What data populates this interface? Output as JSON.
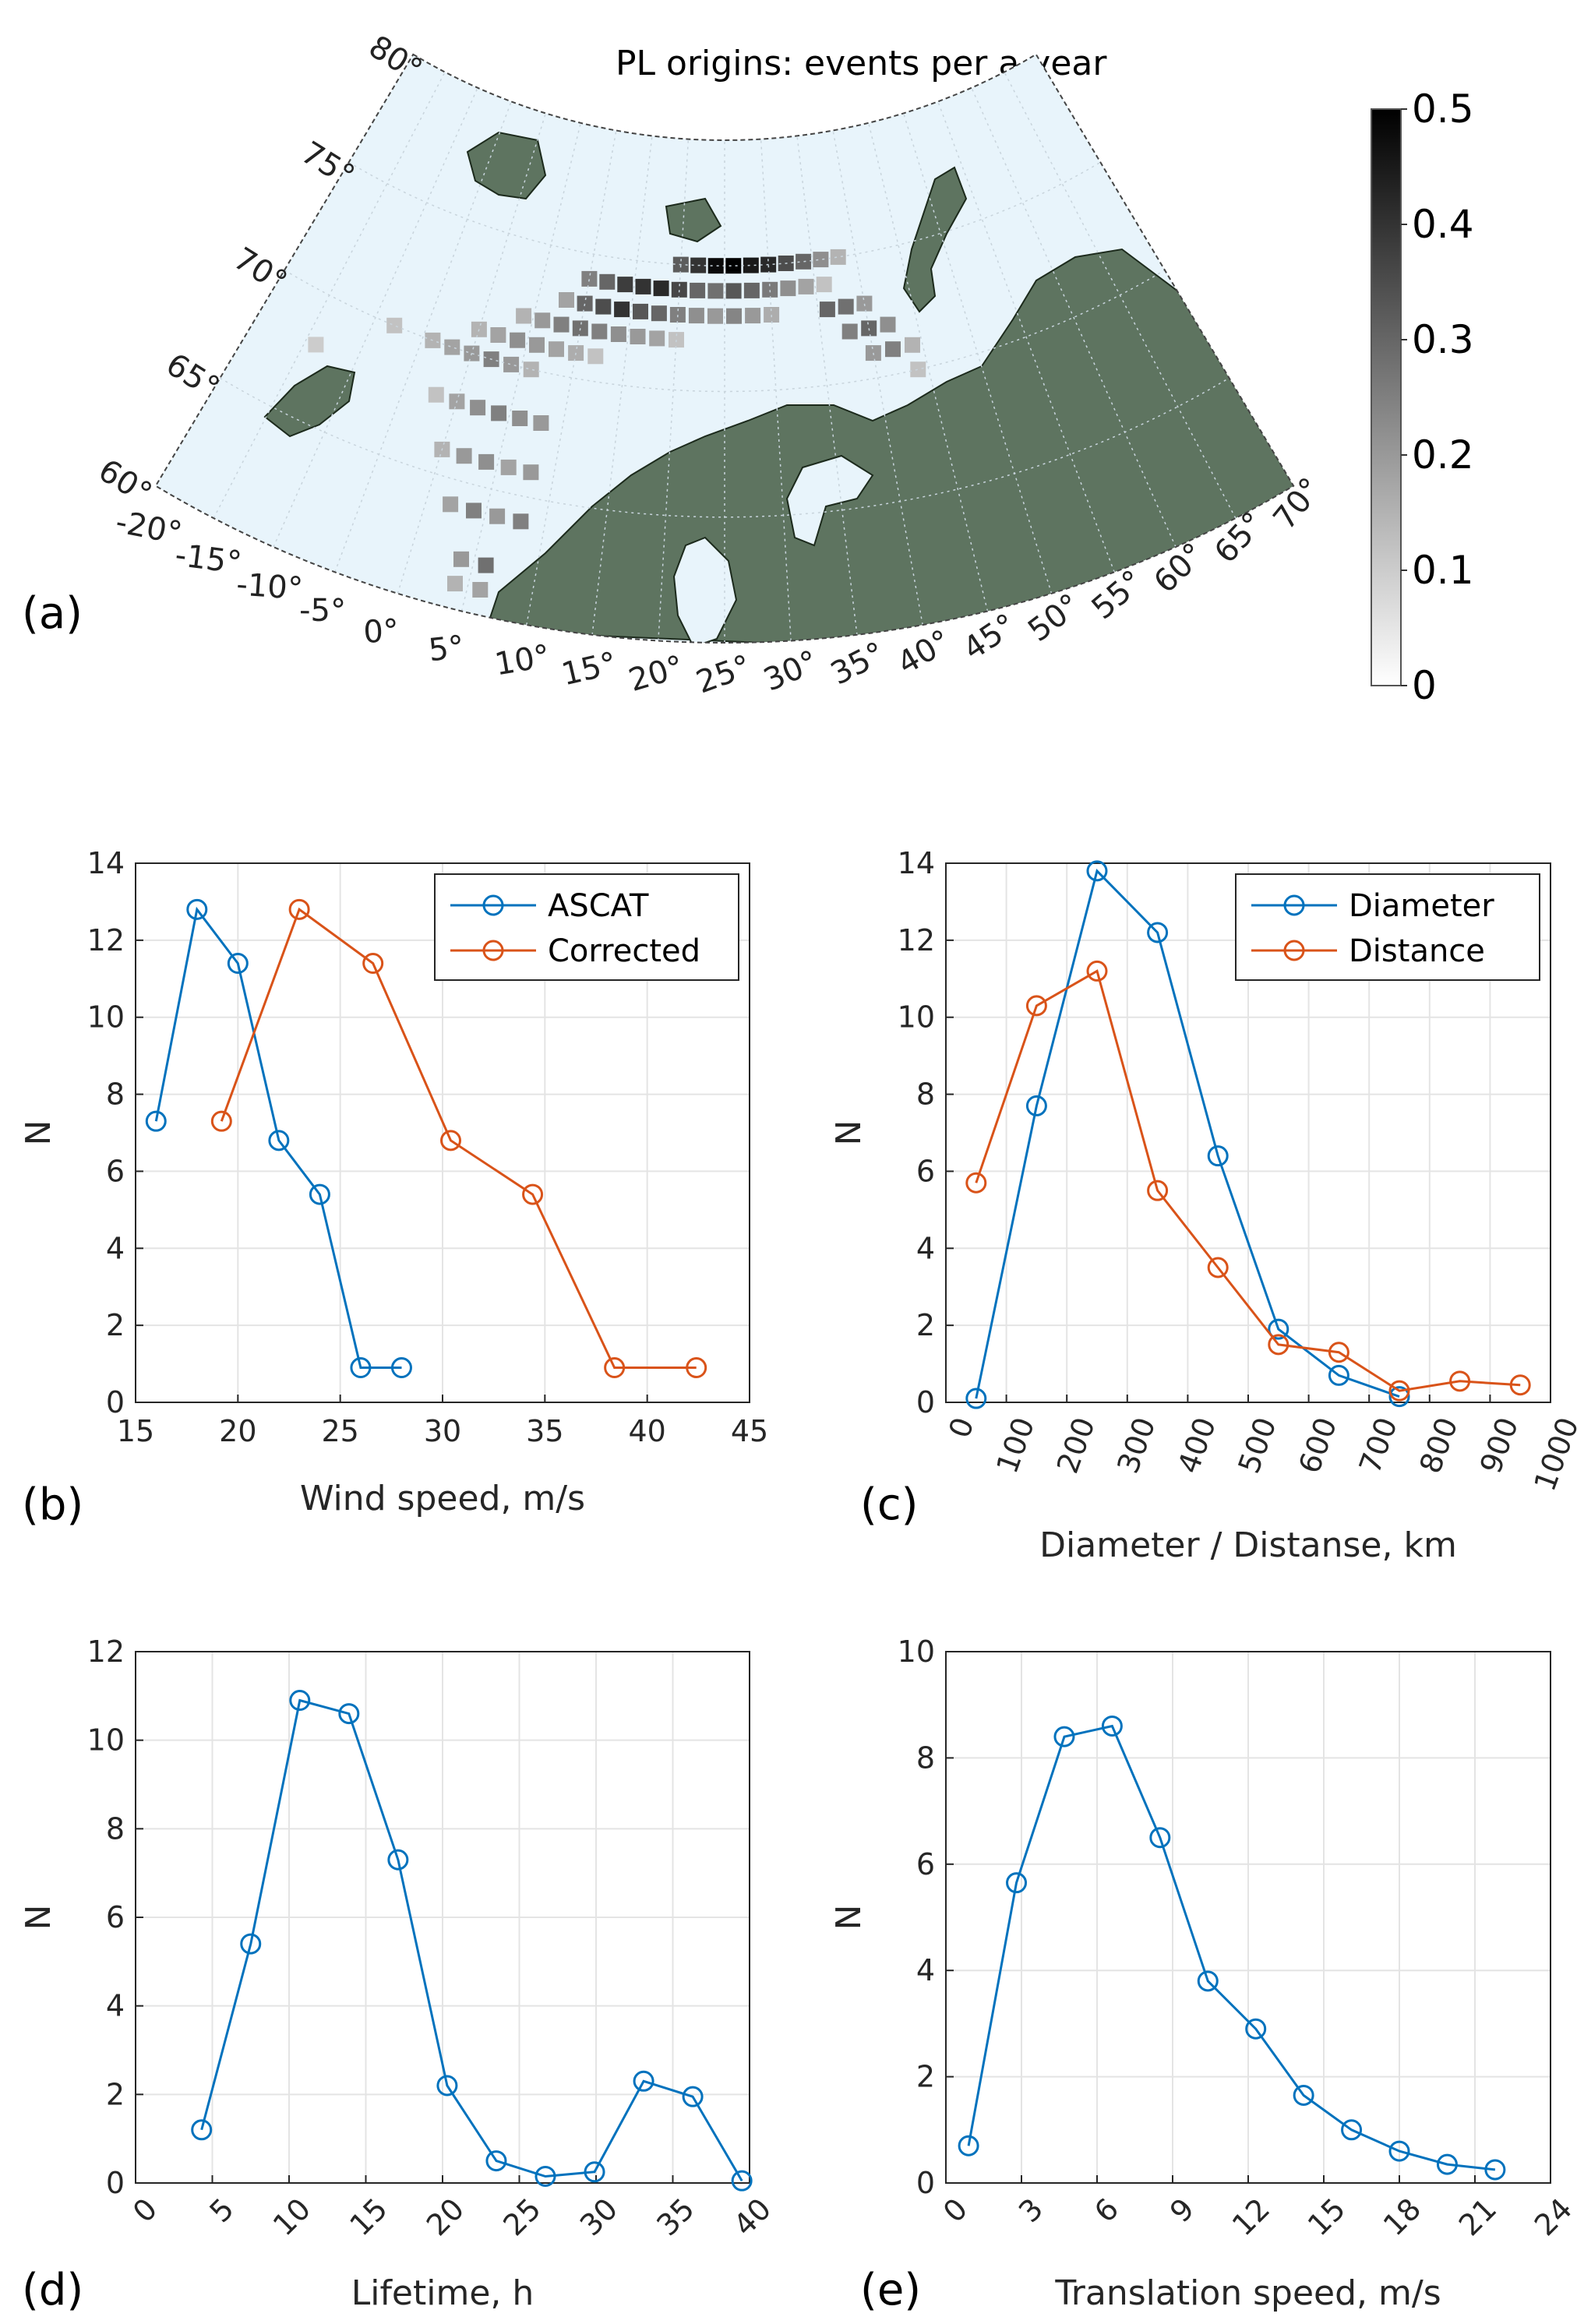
{
  "colors": {
    "blue": "#0072BD",
    "orange": "#D95319",
    "land": "#5E7460",
    "ocean": "#E8F4FB"
  },
  "map": {
    "panel_label": "(a)",
    "title": "PL origins: events per a year",
    "lat_labels": [
      "80°",
      "75°",
      "70°",
      "65°",
      "60°"
    ],
    "lon_labels": [
      "-20°",
      "-15°",
      "-10°",
      "-5°",
      "0°",
      "5°",
      "10°",
      "15°",
      "20°",
      "25°",
      "30°",
      "35°",
      "40°",
      "45°",
      "50°",
      "55°",
      "60°",
      "65°",
      "70°"
    ],
    "colorbar": {
      "ticks": [
        "0",
        "0.1",
        "0.2",
        "0.3",
        "0.4",
        "0.5"
      ],
      "min": 0,
      "max": 0.5
    },
    "cells": [
      {
        "lon": 20,
        "lat": 75,
        "v": 0.32
      },
      {
        "lon": 22,
        "lat": 75,
        "v": 0.4
      },
      {
        "lon": 24,
        "lat": 75,
        "v": 0.48
      },
      {
        "lon": 26,
        "lat": 75,
        "v": 0.5
      },
      {
        "lon": 28,
        "lat": 75,
        "v": 0.45
      },
      {
        "lon": 30,
        "lat": 75,
        "v": 0.42
      },
      {
        "lon": 32,
        "lat": 75,
        "v": 0.35
      },
      {
        "lon": 34,
        "lat": 75,
        "v": 0.3
      },
      {
        "lon": 36,
        "lat": 75,
        "v": 0.22
      },
      {
        "lon": 38,
        "lat": 75,
        "v": 0.15
      },
      {
        "lon": 10,
        "lat": 74,
        "v": 0.25
      },
      {
        "lon": 12,
        "lat": 74,
        "v": 0.3
      },
      {
        "lon": 14,
        "lat": 74,
        "v": 0.38
      },
      {
        "lon": 16,
        "lat": 74,
        "v": 0.4
      },
      {
        "lon": 18,
        "lat": 74,
        "v": 0.42
      },
      {
        "lon": 20,
        "lat": 74,
        "v": 0.36
      },
      {
        "lon": 22,
        "lat": 74,
        "v": 0.3
      },
      {
        "lon": 24,
        "lat": 74,
        "v": 0.28
      },
      {
        "lon": 26,
        "lat": 74,
        "v": 0.33
      },
      {
        "lon": 28,
        "lat": 74,
        "v": 0.3
      },
      {
        "lon": 30,
        "lat": 74,
        "v": 0.26
      },
      {
        "lon": 32,
        "lat": 74,
        "v": 0.22
      },
      {
        "lon": 34,
        "lat": 74,
        "v": 0.18
      },
      {
        "lon": 36,
        "lat": 74,
        "v": 0.12
      },
      {
        "lon": 8,
        "lat": 73,
        "v": 0.18
      },
      {
        "lon": 10,
        "lat": 73,
        "v": 0.3
      },
      {
        "lon": 12,
        "lat": 73,
        "v": 0.35
      },
      {
        "lon": 14,
        "lat": 73,
        "v": 0.4
      },
      {
        "lon": 16,
        "lat": 73,
        "v": 0.33
      },
      {
        "lon": 18,
        "lat": 73,
        "v": 0.3
      },
      {
        "lon": 20,
        "lat": 73,
        "v": 0.25
      },
      {
        "lon": 22,
        "lat": 73,
        "v": 0.22
      },
      {
        "lon": 24,
        "lat": 73,
        "v": 0.2
      },
      {
        "lon": 26,
        "lat": 73,
        "v": 0.24
      },
      {
        "lon": 28,
        "lat": 73,
        "v": 0.2
      },
      {
        "lon": 30,
        "lat": 73,
        "v": 0.16
      },
      {
        "lon": 36,
        "lat": 73,
        "v": 0.3
      },
      {
        "lon": 38,
        "lat": 73,
        "v": 0.28
      },
      {
        "lon": 40,
        "lat": 73,
        "v": 0.2
      },
      {
        "lon": 4,
        "lat": 72,
        "v": 0.15
      },
      {
        "lon": 6,
        "lat": 72,
        "v": 0.2
      },
      {
        "lon": 8,
        "lat": 72,
        "v": 0.25
      },
      {
        "lon": 10,
        "lat": 72,
        "v": 0.28
      },
      {
        "lon": 12,
        "lat": 72,
        "v": 0.25
      },
      {
        "lon": 14,
        "lat": 72,
        "v": 0.22
      },
      {
        "lon": 16,
        "lat": 72,
        "v": 0.2
      },
      {
        "lon": 18,
        "lat": 72,
        "v": 0.18
      },
      {
        "lon": 20,
        "lat": 72,
        "v": 0.12
      },
      {
        "lon": 38,
        "lat": 72,
        "v": 0.25
      },
      {
        "lon": 40,
        "lat": 72,
        "v": 0.3
      },
      {
        "lon": 42,
        "lat": 72,
        "v": 0.22
      },
      {
        "lon": 0,
        "lat": 71,
        "v": 0.15
      },
      {
        "lon": 2,
        "lat": 71,
        "v": 0.18
      },
      {
        "lon": 4,
        "lat": 71,
        "v": 0.22
      },
      {
        "lon": 6,
        "lat": 71,
        "v": 0.2
      },
      {
        "lon": 8,
        "lat": 71,
        "v": 0.18
      },
      {
        "lon": 10,
        "lat": 71,
        "v": 0.16
      },
      {
        "lon": 12,
        "lat": 71,
        "v": 0.12
      },
      {
        "lon": 40,
        "lat": 71,
        "v": 0.2
      },
      {
        "lon": 42,
        "lat": 71,
        "v": 0.25
      },
      {
        "lon": 44,
        "lat": 71,
        "v": 0.15
      },
      {
        "lon": -8,
        "lat": 70,
        "v": 0.12
      },
      {
        "lon": -4,
        "lat": 70,
        "v": 0.15
      },
      {
        "lon": -2,
        "lat": 70,
        "v": 0.18
      },
      {
        "lon": 0,
        "lat": 70,
        "v": 0.2
      },
      {
        "lon": 2,
        "lat": 70,
        "v": 0.25
      },
      {
        "lon": 4,
        "lat": 70,
        "v": 0.2
      },
      {
        "lon": 6,
        "lat": 70,
        "v": 0.15
      },
      {
        "lon": 44,
        "lat": 70,
        "v": 0.12
      },
      {
        "lon": -14,
        "lat": 68,
        "v": 0.1
      },
      {
        "lon": -2,
        "lat": 68,
        "v": 0.12
      },
      {
        "lon": 0,
        "lat": 68,
        "v": 0.18
      },
      {
        "lon": 2,
        "lat": 68,
        "v": 0.22
      },
      {
        "lon": 4,
        "lat": 68,
        "v": 0.25
      },
      {
        "lon": 6,
        "lat": 68,
        "v": 0.22
      },
      {
        "lon": 8,
        "lat": 68,
        "v": 0.2
      },
      {
        "lon": 0,
        "lat": 66,
        "v": 0.15
      },
      {
        "lon": 2,
        "lat": 66,
        "v": 0.2
      },
      {
        "lon": 4,
        "lat": 66,
        "v": 0.22
      },
      {
        "lon": 6,
        "lat": 66,
        "v": 0.18
      },
      {
        "lon": 8,
        "lat": 66,
        "v": 0.2
      },
      {
        "lon": 2,
        "lat": 64,
        "v": 0.18
      },
      {
        "lon": 4,
        "lat": 64,
        "v": 0.25
      },
      {
        "lon": 6,
        "lat": 64,
        "v": 0.2
      },
      {
        "lon": 8,
        "lat": 64,
        "v": 0.25
      },
      {
        "lon": 4,
        "lat": 62,
        "v": 0.2
      },
      {
        "lon": 6,
        "lat": 62,
        "v": 0.28
      },
      {
        "lon": 4,
        "lat": 61,
        "v": 0.15
      },
      {
        "lon": 6,
        "lat": 61,
        "v": 0.18
      }
    ]
  },
  "chart_data": [
    {
      "type": "line",
      "panel_label": "(b)",
      "xlabel": "Wind speed, m/s",
      "ylabel": "N",
      "xlim": [
        15,
        45
      ],
      "ylim": [
        0,
        14
      ],
      "xticks": [
        15,
        20,
        25,
        30,
        35,
        40,
        45
      ],
      "yticks": [
        0,
        2,
        4,
        6,
        8,
        10,
        12,
        14
      ],
      "legend": "top-right",
      "series": [
        {
          "name": "ASCAT",
          "color": "#0072BD",
          "x": [
            16,
            18,
            20,
            22,
            24,
            26,
            28
          ],
          "y": [
            7.3,
            12.8,
            11.4,
            6.8,
            5.4,
            0.9,
            0.9
          ]
        },
        {
          "name": "Corrected",
          "color": "#D95319",
          "x": [
            19.2,
            23,
            26.6,
            30.4,
            34.4,
            38.4,
            42.4
          ],
          "y": [
            7.3,
            12.8,
            11.4,
            6.8,
            5.4,
            0.9,
            0.9
          ]
        }
      ]
    },
    {
      "type": "line",
      "panel_label": "(c)",
      "xlabel": "Diameter / Distanse, km",
      "ylabel": "N",
      "xlim": [
        0,
        1000
      ],
      "ylim": [
        0,
        14
      ],
      "xticks": [
        0,
        100,
        200,
        300,
        400,
        500,
        600,
        700,
        800,
        900,
        1000
      ],
      "yticks": [
        0,
        2,
        4,
        6,
        8,
        10,
        12,
        14
      ],
      "xtick_rotation": -70,
      "legend": "top-right",
      "series": [
        {
          "name": "Diameter",
          "color": "#0072BD",
          "x": [
            50,
            150,
            250,
            350,
            450,
            550,
            650,
            750
          ],
          "y": [
            0.1,
            7.7,
            13.8,
            12.2,
            6.4,
            1.9,
            0.7,
            0.15
          ]
        },
        {
          "name": "Distance",
          "color": "#D95319",
          "x": [
            50,
            150,
            250,
            350,
            450,
            550,
            650,
            750,
            850,
            950
          ],
          "y": [
            5.7,
            10.3,
            11.2,
            5.5,
            3.5,
            1.5,
            1.3,
            0.3,
            0.55,
            0.45
          ]
        }
      ]
    },
    {
      "type": "line",
      "panel_label": "(d)",
      "xlabel": "Lifetime, h",
      "ylabel": "N",
      "xlim": [
        0,
        40
      ],
      "ylim": [
        0,
        12
      ],
      "xticks": [
        0,
        5,
        10,
        15,
        20,
        25,
        30,
        35,
        40
      ],
      "yticks": [
        0,
        2,
        4,
        6,
        8,
        10,
        12
      ],
      "xtick_rotation": -45,
      "series": [
        {
          "name": "Lifetime",
          "color": "#0072BD",
          "x": [
            4.3,
            7.5,
            10.7,
            13.9,
            17.1,
            20.3,
            23.5,
            26.7,
            29.9,
            33.1,
            36.3,
            39.5
          ],
          "y": [
            1.2,
            5.4,
            10.9,
            10.6,
            7.3,
            2.2,
            0.5,
            0.15,
            0.25,
            2.3,
            1.95,
            0.05
          ]
        }
      ]
    },
    {
      "type": "line",
      "panel_label": "(e)",
      "xlabel": "Translation speed, m/s",
      "ylabel": "N",
      "xlim": [
        0,
        24
      ],
      "ylim": [
        0,
        10
      ],
      "xticks": [
        0,
        3,
        6,
        9,
        12,
        15,
        18,
        21,
        24
      ],
      "yticks": [
        0,
        2,
        4,
        6,
        8,
        10
      ],
      "xtick_rotation": -45,
      "series": [
        {
          "name": "Translation speed",
          "color": "#0072BD",
          "x": [
            0.9,
            2.8,
            4.7,
            6.6,
            8.5,
            10.4,
            12.3,
            14.2,
            16.1,
            18,
            19.9,
            21.8
          ],
          "y": [
            0.7,
            5.65,
            8.4,
            8.6,
            6.5,
            3.8,
            2.9,
            1.65,
            1.0,
            0.6,
            0.35,
            0.25
          ]
        }
      ]
    }
  ]
}
